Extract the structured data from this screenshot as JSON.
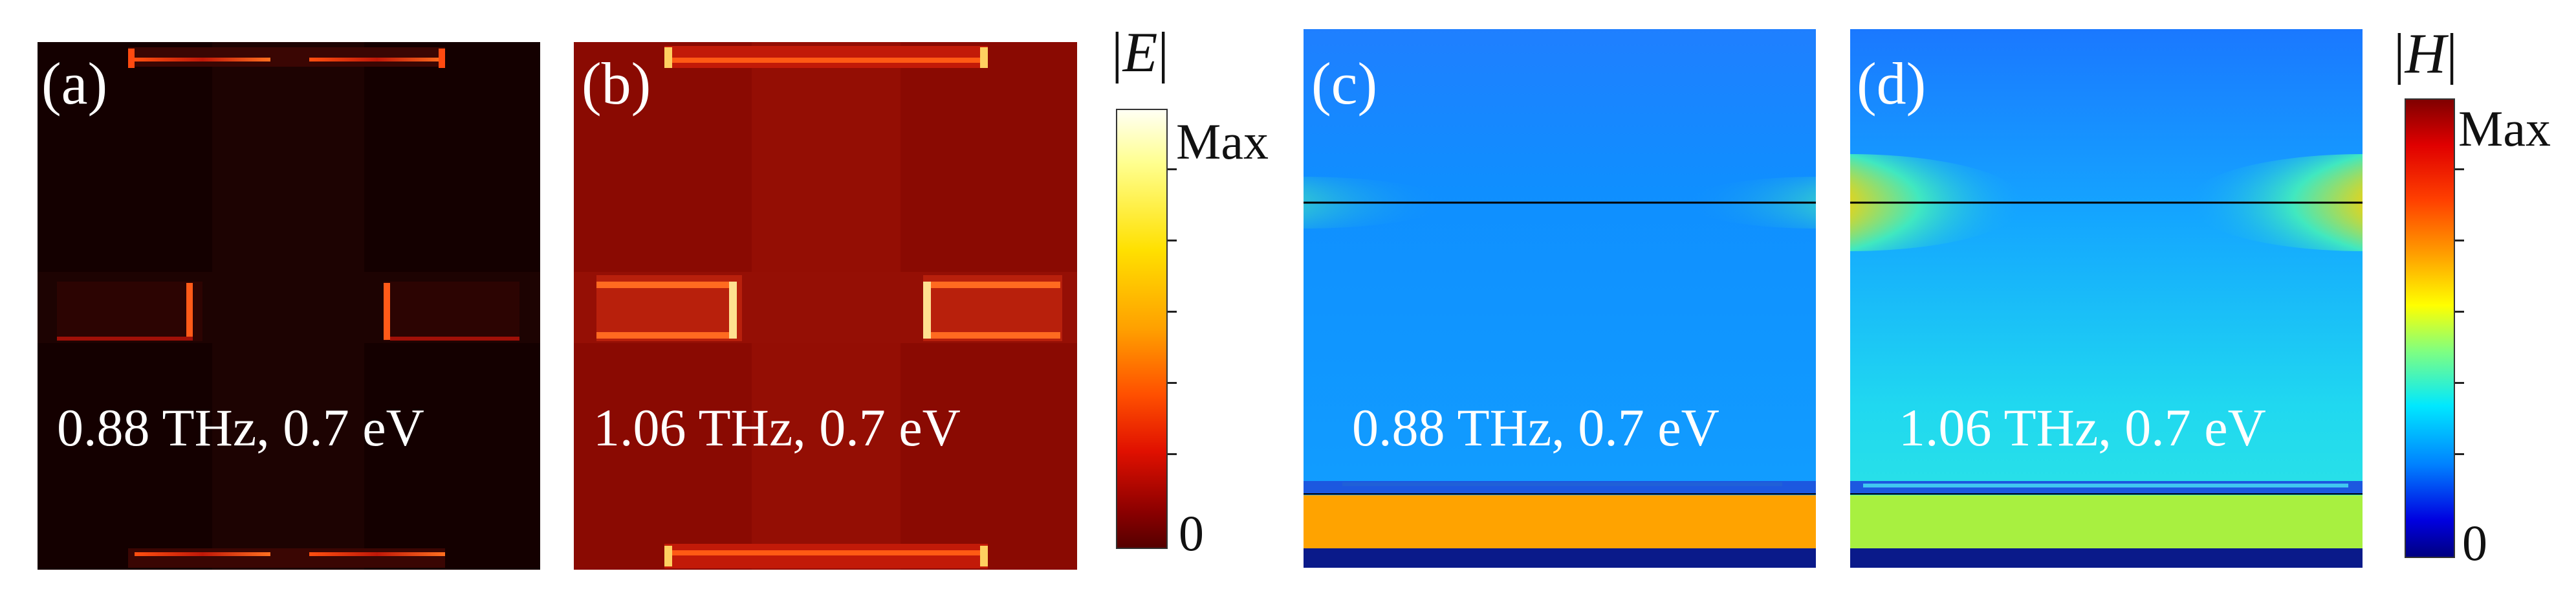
{
  "figure": {
    "panels": [
      {
        "label": "(a)",
        "caption": "0.88 THz, 0.7 eV",
        "field": "|E|"
      },
      {
        "label": "(b)",
        "caption": "1.06 THz, 0.7 eV",
        "field": "|E|"
      },
      {
        "label": "(c)",
        "caption": "0.88 THz, 0.7 eV",
        "field": "|H|"
      },
      {
        "label": "(d)",
        "caption": "1.06 THz, 0.7 eV",
        "field": "|H|"
      }
    ],
    "colorbars": [
      {
        "title_bar": "|",
        "title_symbol": "E",
        "max_label": "Max",
        "min_label": "0",
        "colormap": "hot"
      },
      {
        "title_bar": "|",
        "title_symbol": "H",
        "max_label": "Max",
        "min_label": "0",
        "colormap": "jet"
      }
    ]
  }
}
